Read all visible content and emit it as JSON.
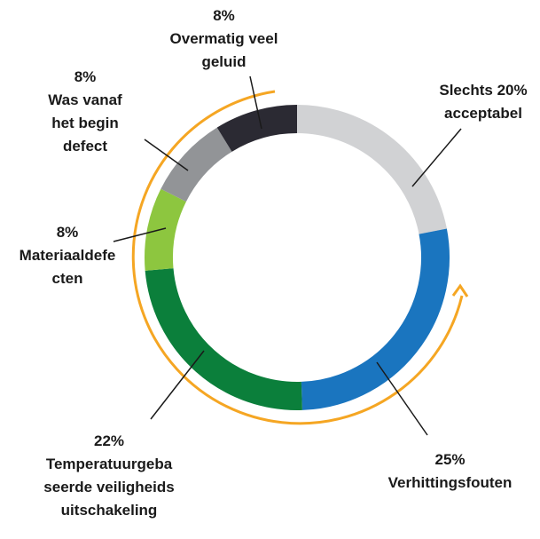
{
  "chart_data": {
    "type": "donut",
    "categories": [
      "acceptabel",
      "Verhittingsfouten",
      "Temperatuurgebaseerde veiligheidsuitschakeling",
      "Materiaaldefecten",
      "Was vanaf het begin defect",
      "Overmatig veel geluid"
    ],
    "values": [
      20,
      25,
      22,
      8,
      8,
      8
    ],
    "value_labels": [
      "Slechts 20%",
      "25%",
      "22%",
      "8%",
      "8%",
      "8%"
    ],
    "colors": [
      "#d1d2d4",
      "#1a75bf",
      "#0b7f3b",
      "#8dc63f",
      "#929497",
      "#2b2a33"
    ]
  }
}
